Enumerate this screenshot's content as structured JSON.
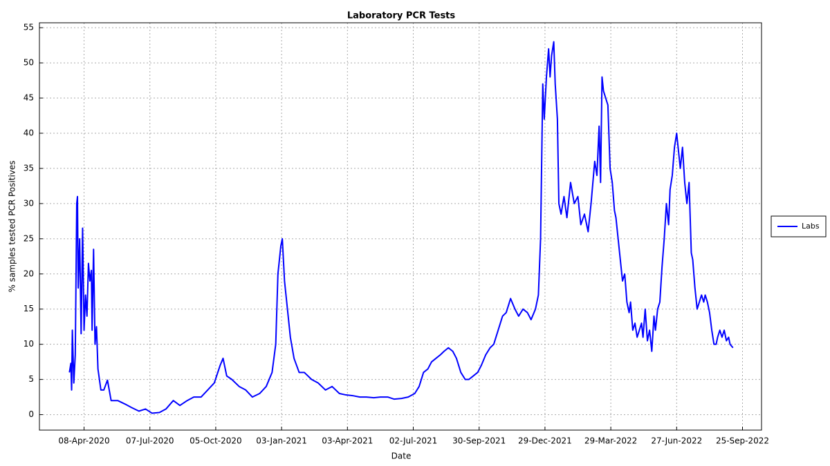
{
  "chart_data": {
    "type": "line",
    "title": "Laboratory PCR Tests",
    "xlabel": "Date",
    "ylabel": "% samples tested PCR Positives",
    "x": [
      "2020-03-19",
      "2020-03-21",
      "2020-03-22",
      "2020-03-23",
      "2020-03-25",
      "2020-03-27",
      "2020-03-29",
      "2020-03-30",
      "2020-03-31",
      "2020-04-02",
      "2020-04-04",
      "2020-04-06",
      "2020-04-08",
      "2020-04-10",
      "2020-04-12",
      "2020-04-14",
      "2020-04-16",
      "2020-04-18",
      "2020-04-19",
      "2020-04-21",
      "2020-04-23",
      "2020-04-25",
      "2020-04-27",
      "2020-05-01",
      "2020-05-05",
      "2020-05-10",
      "2020-05-15",
      "2020-05-24",
      "2020-06-03",
      "2020-06-12",
      "2020-06-22",
      "2020-07-01",
      "2020-07-10",
      "2020-07-20",
      "2020-07-29",
      "2020-08-08",
      "2020-08-17",
      "2020-08-27",
      "2020-09-05",
      "2020-09-15",
      "2020-09-24",
      "2020-10-03",
      "2020-10-11",
      "2020-10-15",
      "2020-10-20",
      "2020-10-27",
      "2020-11-06",
      "2020-11-15",
      "2020-11-24",
      "2020-12-04",
      "2020-12-13",
      "2020-12-21",
      "2020-12-26",
      "2020-12-29",
      "2021-01-02",
      "2021-01-04",
      "2021-01-07",
      "2021-01-11",
      "2021-01-15",
      "2021-01-20",
      "2021-01-27",
      "2021-02-03",
      "2021-02-13",
      "2021-02-22",
      "2021-03-04",
      "2021-03-13",
      "2021-03-23",
      "2021-04-01",
      "2021-04-10",
      "2021-04-20",
      "2021-04-29",
      "2021-05-09",
      "2021-05-18",
      "2021-05-28",
      "2021-06-06",
      "2021-06-16",
      "2021-06-25",
      "2021-07-04",
      "2021-07-10",
      "2021-07-16",
      "2021-07-22",
      "2021-07-27",
      "2021-08-02",
      "2021-08-08",
      "2021-08-13",
      "2021-08-19",
      "2021-08-25",
      "2021-08-30",
      "2021-09-05",
      "2021-09-11",
      "2021-09-16",
      "2021-09-22",
      "2021-09-28",
      "2021-10-03",
      "2021-10-09",
      "2021-10-15",
      "2021-10-20",
      "2021-10-26",
      "2021-11-01",
      "2021-11-06",
      "2021-11-12",
      "2021-11-18",
      "2021-11-23",
      "2021-11-29",
      "2021-12-05",
      "2021-12-10",
      "2021-12-16",
      "2021-12-20",
      "2021-12-23",
      "2021-12-26",
      "2021-12-28",
      "2021-12-31",
      "2022-01-03",
      "2022-01-05",
      "2022-01-07",
      "2022-01-10",
      "2022-01-12",
      "2022-01-15",
      "2022-01-17",
      "2022-01-20",
      "2022-01-24",
      "2022-01-28",
      "2022-02-02",
      "2022-02-07",
      "2022-02-12",
      "2022-02-16",
      "2022-02-21",
      "2022-02-26",
      "2022-03-02",
      "2022-03-07",
      "2022-03-10",
      "2022-03-13",
      "2022-03-15",
      "2022-03-17",
      "2022-03-19",
      "2022-03-22",
      "2022-03-25",
      "2022-03-28",
      "2022-03-31",
      "2022-04-03",
      "2022-04-05",
      "2022-04-08",
      "2022-04-11",
      "2022-04-14",
      "2022-04-17",
      "2022-04-20",
      "2022-04-23",
      "2022-04-25",
      "2022-04-28",
      "2022-05-01",
      "2022-05-04",
      "2022-05-07",
      "2022-05-10",
      "2022-05-12",
      "2022-05-15",
      "2022-05-18",
      "2022-05-21",
      "2022-05-24",
      "2022-05-27",
      "2022-05-29",
      "2022-06-01",
      "2022-06-04",
      "2022-06-07",
      "2022-06-10",
      "2022-06-13",
      "2022-06-16",
      "2022-06-18",
      "2022-06-21",
      "2022-06-24",
      "2022-06-27",
      "2022-06-30",
      "2022-07-02",
      "2022-07-05",
      "2022-07-08",
      "2022-07-11",
      "2022-07-14",
      "2022-07-17",
      "2022-07-19",
      "2022-07-22",
      "2022-07-25",
      "2022-07-28",
      "2022-07-31",
      "2022-08-03",
      "2022-08-05",
      "2022-08-08",
      "2022-08-11",
      "2022-08-14",
      "2022-08-17",
      "2022-08-20",
      "2022-08-22",
      "2022-08-25",
      "2022-08-28",
      "2022-08-31",
      "2022-09-03",
      "2022-09-06",
      "2022-09-08",
      "2022-09-12"
    ],
    "series": [
      {
        "name": "Labs",
        "color": "#0000ff",
        "values": [
          6,
          7.3,
          3.5,
          12,
          4.5,
          8.5,
          30,
          31,
          18,
          25,
          11.5,
          26.5,
          12,
          17,
          14,
          21.5,
          19,
          20.5,
          12,
          23.5,
          10,
          12.5,
          6.5,
          3.5,
          3.5,
          4.9,
          2,
          2,
          1.5,
          1,
          0.5,
          0.8,
          0.2,
          0.3,
          0.8,
          2,
          1.3,
          2,
          2.5,
          2.5,
          3.5,
          4.5,
          7,
          8,
          5.5,
          5,
          4,
          3.5,
          2.5,
          3,
          4,
          6,
          10,
          20,
          24,
          25,
          19,
          15,
          11,
          8,
          6,
          6,
          5,
          4.5,
          3.5,
          4,
          3,
          2.8,
          2.7,
          2.5,
          2.5,
          2.4,
          2.5,
          2.5,
          2.2,
          2.3,
          2.5,
          3,
          4,
          6,
          6.5,
          7.5,
          8,
          8.5,
          9,
          9.5,
          9,
          8,
          6,
          5,
          5,
          5.5,
          6,
          7,
          8.5,
          9.5,
          10,
          12,
          14,
          14.5,
          16.5,
          15,
          14,
          15,
          14.5,
          13.5,
          15,
          17,
          25,
          47,
          42,
          48,
          52,
          48,
          51,
          53,
          47,
          42,
          30,
          28.5,
          31,
          28,
          33,
          30,
          31,
          27,
          28.5,
          26,
          30,
          36,
          34,
          41,
          33,
          48,
          46,
          45,
          44,
          35,
          33,
          29,
          28,
          25,
          22,
          19,
          20,
          16,
          14.5,
          16,
          12,
          13,
          11,
          12,
          13,
          11,
          15,
          10.5,
          12,
          9,
          14,
          12,
          15,
          16,
          21,
          25,
          30,
          27,
          32,
          34,
          38,
          40,
          37,
          35,
          38,
          33,
          30,
          33,
          23,
          22,
          18,
          15,
          16,
          17,
          16,
          17,
          16,
          14.5,
          12,
          10,
          10,
          11,
          12,
          11,
          12,
          10.5,
          11,
          10,
          9.5
        ]
      }
    ],
    "xlim": [
      "2020-02-07",
      "2022-10-21"
    ],
    "xticks": [
      {
        "value": "2020-04-08",
        "label": "08-Apr-2020"
      },
      {
        "value": "2020-07-07",
        "label": "07-Jul-2020"
      },
      {
        "value": "2020-10-05",
        "label": "05-Oct-2020"
      },
      {
        "value": "2021-01-03",
        "label": "03-Jan-2021"
      },
      {
        "value": "2021-04-03",
        "label": "03-Apr-2021"
      },
      {
        "value": "2021-07-02",
        "label": "02-Jul-2021"
      },
      {
        "value": "2021-09-30",
        "label": "30-Sep-2021"
      },
      {
        "value": "2021-12-29",
        "label": "29-Dec-2021"
      },
      {
        "value": "2022-03-29",
        "label": "29-Mar-2022"
      },
      {
        "value": "2022-06-27",
        "label": "27-Jun-2022"
      },
      {
        "value": "2022-09-25",
        "label": "25-Sep-2022"
      }
    ],
    "ylim": [
      -2.2,
      55.7
    ],
    "yticks": [
      0,
      5,
      10,
      15,
      20,
      25,
      30,
      35,
      40,
      45,
      50,
      55
    ],
    "grid": true,
    "legend": "right"
  }
}
